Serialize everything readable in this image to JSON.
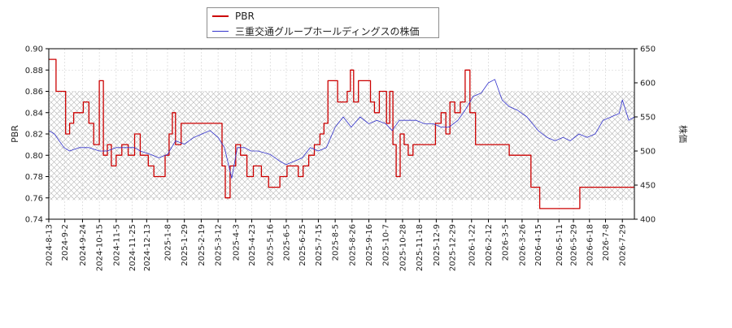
{
  "chart_data": {
    "type": "line",
    "title": "",
    "legend": {
      "placement": "top-center",
      "entries": [
        {
          "label": "PBR",
          "color": "#cc0000"
        },
        {
          "label": "三重交通グループホールディングスの株価",
          "color": "#3333cc"
        }
      ]
    },
    "y_left": {
      "label": "PBR",
      "range": [
        0.74,
        0.9
      ],
      "ticks": [
        "0.74",
        "0.76",
        "0.78",
        "0.80",
        "0.82",
        "0.84",
        "0.86",
        "0.88",
        "0.90"
      ]
    },
    "y_right": {
      "label": "株価",
      "range": [
        400,
        650
      ],
      "ticks": [
        "400",
        "450",
        "500",
        "550",
        "600",
        "650"
      ]
    },
    "x_ticks": [
      "2024-8-13",
      "2024-9-2",
      "2024-9-24",
      "2024-10-15",
      "2024-11-5",
      "2024-11-25",
      "2024-12-13",
      "2025-1-8",
      "2025-1-29",
      "2025-2-19",
      "2025-3-12",
      "2025-4-3",
      "2025-4-23",
      "2025-5-16",
      "2025-6-5",
      "2025-6-25",
      "2025-7-15",
      "2025-8-5",
      "2025-8-26",
      "2025-9-16",
      "2025-10-7",
      "2025-10-28",
      "2025-11-18",
      "2025-12-9",
      "2025-12-29",
      "2026-1-22",
      "2026-2-12",
      "2026-3-5",
      "2026-3-26",
      "2026-4-15",
      "2026-5-11",
      "2026-5-29",
      "2026-6-18",
      "2026-7-8",
      "2026-7-29"
    ],
    "x_range": [
      "2024-8-13",
      "2026-8-13"
    ],
    "grid": true,
    "hatched_band": {
      "axis": "y_left",
      "range": [
        0.758,
        0.86
      ]
    },
    "series": [
      {
        "name": "PBR",
        "axis": "y_left",
        "color": "#cc0000",
        "step": true,
        "points": [
          [
            "2024-8-13",
            0.89
          ],
          [
            "2024-8-22",
            0.86
          ],
          [
            "2024-8-31",
            0.86
          ],
          [
            "2024-9-3",
            0.82
          ],
          [
            "2024-9-8",
            0.83
          ],
          [
            "2024-9-13",
            0.84
          ],
          [
            "2024-9-25",
            0.85
          ],
          [
            "2024-10-2",
            0.83
          ],
          [
            "2024-10-8",
            0.81
          ],
          [
            "2024-10-15",
            0.87
          ],
          [
            "2024-10-20",
            0.8
          ],
          [
            "2024-10-25",
            0.81
          ],
          [
            "2024-10-30",
            0.79
          ],
          [
            "2024-11-5",
            0.8
          ],
          [
            "2024-11-12",
            0.81
          ],
          [
            "2024-11-20",
            0.8
          ],
          [
            "2024-11-28",
            0.82
          ],
          [
            "2024-12-5",
            0.8
          ],
          [
            "2024-12-15",
            0.79
          ],
          [
            "2024-12-22",
            0.78
          ],
          [
            "2025-1-5",
            0.8
          ],
          [
            "2025-1-10",
            0.82
          ],
          [
            "2025-1-14",
            0.84
          ],
          [
            "2025-1-18",
            0.81
          ],
          [
            "2025-1-25",
            0.83
          ],
          [
            "2025-2-10",
            0.83
          ],
          [
            "2025-3-10",
            0.83
          ],
          [
            "2025-3-17",
            0.79
          ],
          [
            "2025-3-21",
            0.76
          ],
          [
            "2025-3-27",
            0.79
          ],
          [
            "2025-4-3",
            0.81
          ],
          [
            "2025-4-9",
            0.8
          ],
          [
            "2025-4-17",
            0.78
          ],
          [
            "2025-4-25",
            0.79
          ],
          [
            "2025-5-5",
            0.78
          ],
          [
            "2025-5-14",
            0.77
          ],
          [
            "2025-5-28",
            0.78
          ],
          [
            "2025-6-6",
            0.79
          ],
          [
            "2025-6-20",
            0.78
          ],
          [
            "2025-6-26",
            0.79
          ],
          [
            "2025-7-3",
            0.8
          ],
          [
            "2025-7-10",
            0.81
          ],
          [
            "2025-7-17",
            0.82
          ],
          [
            "2025-7-22",
            0.83
          ],
          [
            "2025-7-27",
            0.87
          ],
          [
            "2025-8-8",
            0.85
          ],
          [
            "2025-8-20",
            0.86
          ],
          [
            "2025-8-24",
            0.88
          ],
          [
            "2025-8-28",
            0.85
          ],
          [
            "2025-9-3",
            0.87
          ],
          [
            "2025-9-18",
            0.85
          ],
          [
            "2025-9-23",
            0.84
          ],
          [
            "2025-9-29",
            0.86
          ],
          [
            "2025-10-8",
            0.83
          ],
          [
            "2025-10-12",
            0.86
          ],
          [
            "2025-10-16",
            0.81
          ],
          [
            "2025-10-20",
            0.78
          ],
          [
            "2025-10-25",
            0.82
          ],
          [
            "2025-10-30",
            0.81
          ],
          [
            "2025-11-4",
            0.8
          ],
          [
            "2025-11-10",
            0.81
          ],
          [
            "2025-12-8",
            0.83
          ],
          [
            "2025-12-15",
            0.84
          ],
          [
            "2025-12-21",
            0.82
          ],
          [
            "2025-12-26",
            0.85
          ],
          [
            "2026-1-1",
            0.84
          ],
          [
            "2026-1-8",
            0.85
          ],
          [
            "2026-1-14",
            0.88
          ],
          [
            "2026-1-20",
            0.84
          ],
          [
            "2026-1-27",
            0.81
          ],
          [
            "2026-3-10",
            0.8
          ],
          [
            "2026-4-6",
            0.77
          ],
          [
            "2026-4-17",
            0.75
          ],
          [
            "2026-6-6",
            0.77
          ]
        ]
      },
      {
        "name": "三重交通グループホールディングスの株価",
        "axis": "y_right",
        "color": "#3333cc",
        "step": false,
        "points": [
          [
            "2024-8-13",
            530
          ],
          [
            "2024-8-20",
            525
          ],
          [
            "2024-9-1",
            505
          ],
          [
            "2024-9-8",
            500
          ],
          [
            "2024-9-20",
            505
          ],
          [
            "2024-10-2",
            505
          ],
          [
            "2024-10-15",
            500
          ],
          [
            "2024-10-25",
            500
          ],
          [
            "2024-11-5",
            505
          ],
          [
            "2024-11-18",
            505
          ],
          [
            "2024-11-28",
            505
          ],
          [
            "2024-12-5",
            500
          ],
          [
            "2024-12-18",
            495
          ],
          [
            "2024-12-28",
            490
          ],
          [
            "2025-1-8",
            495
          ],
          [
            "2025-1-18",
            515
          ],
          [
            "2025-1-29",
            510
          ],
          [
            "2025-2-10",
            520
          ],
          [
            "2025-2-20",
            525
          ],
          [
            "2025-3-2",
            530
          ],
          [
            "2025-3-12",
            520
          ],
          [
            "2025-3-20",
            505
          ],
          [
            "2025-3-29",
            460
          ],
          [
            "2025-4-5",
            505
          ],
          [
            "2025-4-14",
            505
          ],
          [
            "2025-4-22",
            500
          ],
          [
            "2025-5-1",
            500
          ],
          [
            "2025-5-16",
            495
          ],
          [
            "2025-5-28",
            485
          ],
          [
            "2025-6-5",
            480
          ],
          [
            "2025-6-15",
            485
          ],
          [
            "2025-6-25",
            490
          ],
          [
            "2025-7-5",
            505
          ],
          [
            "2025-7-15",
            500
          ],
          [
            "2025-7-25",
            505
          ],
          [
            "2025-8-5",
            535
          ],
          [
            "2025-8-15",
            550
          ],
          [
            "2025-8-25",
            535
          ],
          [
            "2025-9-5",
            550
          ],
          [
            "2025-9-16",
            540
          ],
          [
            "2025-9-26",
            545
          ],
          [
            "2025-10-7",
            540
          ],
          [
            "2025-10-15",
            530
          ],
          [
            "2025-10-24",
            545
          ],
          [
            "2025-11-3",
            545
          ],
          [
            "2025-11-14",
            545
          ],
          [
            "2025-11-24",
            540
          ],
          [
            "2025-12-5",
            540
          ],
          [
            "2025-12-15",
            535
          ],
          [
            "2025-12-25",
            535
          ],
          [
            "2026-1-5",
            545
          ],
          [
            "2026-1-14",
            560
          ],
          [
            "2026-1-24",
            580
          ],
          [
            "2026-2-3",
            585
          ],
          [
            "2026-2-12",
            600
          ],
          [
            "2026-2-20",
            605
          ],
          [
            "2026-3-1",
            575
          ],
          [
            "2026-3-10",
            565
          ],
          [
            "2026-3-20",
            560
          ],
          [
            "2026-4-1",
            550
          ],
          [
            "2026-4-15",
            530
          ],
          [
            "2026-4-26",
            520
          ],
          [
            "2026-5-6",
            515
          ],
          [
            "2026-5-16",
            520
          ],
          [
            "2026-5-25",
            515
          ],
          [
            "2026-6-5",
            525
          ],
          [
            "2026-6-15",
            520
          ],
          [
            "2026-6-25",
            525
          ],
          [
            "2026-7-5",
            545
          ],
          [
            "2026-7-15",
            550
          ],
          [
            "2026-7-25",
            555
          ],
          [
            "2026-7-29",
            575
          ],
          [
            "2026-8-6",
            545
          ],
          [
            "2026-8-13",
            550
          ]
        ]
      }
    ]
  }
}
